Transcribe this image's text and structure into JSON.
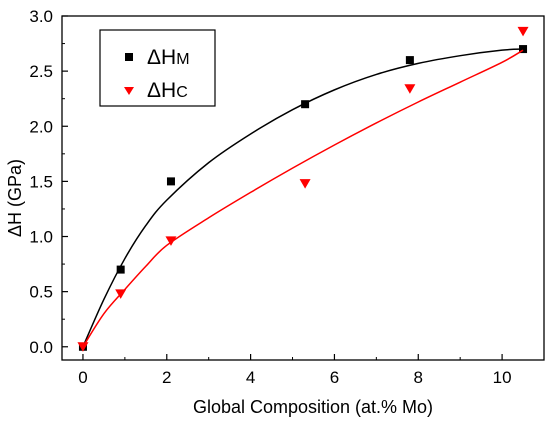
{
  "chart_data": {
    "type": "scatter",
    "xlabel": "Global Composition (at.% Mo)",
    "ylabel": "ΔH (GPa)",
    "xlim": [
      -0.5,
      11
    ],
    "ylim": [
      -0.12,
      3.0
    ],
    "x_ticks": [
      0,
      2,
      4,
      6,
      8,
      10
    ],
    "x_tick_labels": [
      "0",
      "2",
      "4",
      "6",
      "8",
      "10"
    ],
    "y_ticks": [
      0.0,
      0.5,
      1.0,
      1.5,
      2.0,
      2.5,
      3.0
    ],
    "y_tick_labels": [
      "0.0",
      "0.5",
      "1.0",
      "1.5",
      "2.0",
      "2.5",
      "3.0"
    ],
    "grid": false,
    "legend_position": "top-left",
    "series": [
      {
        "name": "ΔH",
        "name_subscript": "M",
        "marker": "square",
        "color": "#000000",
        "x": [
          0,
          0.9,
          2.1,
          5.3,
          7.8,
          10.5
        ],
        "y": [
          0.0,
          0.7,
          1.5,
          2.2,
          2.6,
          2.7
        ],
        "fit": {
          "x": [
            0,
            0.5,
            1,
            1.5,
            2,
            3,
            4,
            5,
            6,
            7,
            8,
            9,
            10,
            10.5
          ],
          "y": [
            0.0,
            0.43,
            0.8,
            1.1,
            1.33,
            1.67,
            1.93,
            2.15,
            2.33,
            2.47,
            2.57,
            2.64,
            2.69,
            2.7
          ]
        }
      },
      {
        "name": "ΔH",
        "name_subscript": "C",
        "marker": "triangle-down",
        "color": "#ff0000",
        "x": [
          0,
          0.9,
          2.1,
          5.3,
          7.8,
          10.5
        ],
        "y": [
          0.0,
          0.48,
          0.96,
          1.48,
          2.34,
          2.86
        ],
        "fit": {
          "x": [
            0,
            0.5,
            1,
            1.5,
            2,
            3,
            4,
            5,
            6,
            7,
            8,
            9,
            10,
            10.5
          ],
          "y": [
            0.0,
            0.3,
            0.52,
            0.73,
            0.92,
            1.17,
            1.4,
            1.62,
            1.83,
            2.03,
            2.22,
            2.4,
            2.58,
            2.69
          ]
        }
      }
    ]
  }
}
